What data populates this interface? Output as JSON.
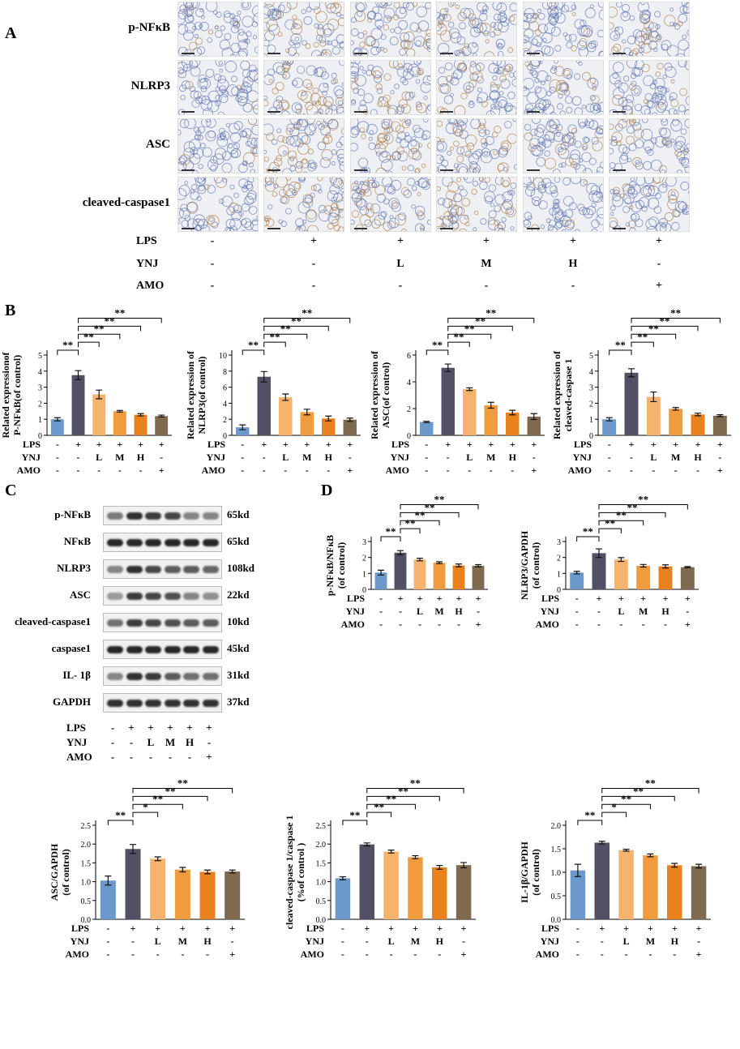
{
  "panels": {
    "A": "A",
    "B": "B",
    "C": "C",
    "D": "D"
  },
  "ihc": {
    "rows": [
      "p-NFκB",
      "NLRP3",
      "ASC",
      "cleaved-caspase1"
    ],
    "conditions": [
      {
        "label": "LPS",
        "values": [
          "-",
          "+",
          "+",
          "+",
          "+",
          "+"
        ]
      },
      {
        "label": "YNJ",
        "values": [
          "-",
          "-",
          "L",
          "M",
          "H",
          "-"
        ]
      },
      {
        "label": "AMO",
        "values": [
          "-",
          "-",
          "-",
          "-",
          "-",
          "+"
        ]
      }
    ]
  },
  "conditions_short": [
    {
      "label": "LPS",
      "values": [
        "-",
        "+",
        "+",
        "+",
        "+",
        "+"
      ]
    },
    {
      "label": "YNJ",
      "values": [
        "-",
        "-",
        "L",
        "M",
        "H",
        "-"
      ]
    },
    {
      "label": "AMO",
      "values": [
        "-",
        "-",
        "-",
        "-",
        "-",
        "+"
      ]
    }
  ],
  "western_blot": {
    "rows": [
      {
        "name": "p-NFκB",
        "kd": "65kd",
        "intensity": [
          0.55,
          0.9,
          0.85,
          0.8,
          0.5,
          0.5
        ]
      },
      {
        "name": "NFκB",
        "kd": "65kd",
        "intensity": [
          0.95,
          0.95,
          0.95,
          0.95,
          0.95,
          0.95
        ]
      },
      {
        "name": "NLRP3",
        "kd": "108kd",
        "intensity": [
          0.5,
          0.9,
          0.8,
          0.7,
          0.7,
          0.65
        ]
      },
      {
        "name": "ASC",
        "kd": "22kd",
        "intensity": [
          0.4,
          0.85,
          0.8,
          0.75,
          0.5,
          0.45
        ]
      },
      {
        "name": "cleaved-caspase1",
        "kd": "10kd",
        "intensity": [
          0.6,
          0.85,
          0.8,
          0.75,
          0.7,
          0.7
        ]
      },
      {
        "name": "caspase1",
        "kd": "45kd",
        "intensity": [
          0.95,
          0.95,
          0.95,
          0.95,
          0.95,
          0.95
        ]
      },
      {
        "name": "IL- 1β",
        "kd": "31kd",
        "intensity": [
          0.5,
          0.9,
          0.85,
          0.7,
          0.6,
          0.6
        ]
      },
      {
        "name": "GAPDH",
        "kd": "37kd",
        "intensity": [
          0.9,
          0.9,
          0.9,
          0.9,
          0.9,
          0.9
        ]
      }
    ]
  },
  "colors": [
    "#6b99cc",
    "#515064",
    "#f6b36e",
    "#f19b3f",
    "#e9821c",
    "#7f6a4f"
  ],
  "chart_data": [
    {
      "type": "bar",
      "panel": "B",
      "ylabel": [
        "Related expressionof",
        "P-NFκB(of control)"
      ],
      "ylim": [
        0,
        5
      ],
      "yticks": [
        0,
        1,
        2,
        3,
        4,
        5
      ],
      "values": [
        1.0,
        3.75,
        2.55,
        1.5,
        1.28,
        1.2
      ],
      "errors": [
        0.1,
        0.28,
        0.27,
        0.05,
        0.07,
        0.06
      ],
      "significance": [
        {
          "from": 1,
          "to": 0,
          "label": "**"
        },
        {
          "from": 1,
          "to": 2,
          "label": "**"
        },
        {
          "from": 1,
          "to": 3,
          "label": "**"
        },
        {
          "from": 1,
          "to": 4,
          "label": "**"
        },
        {
          "from": 1,
          "to": 5,
          "label": "**"
        }
      ]
    },
    {
      "type": "bar",
      "panel": "B",
      "ylabel": [
        "Related expression of",
        "NLRP3(of control)"
      ],
      "ylim": [
        0,
        10
      ],
      "yticks": [
        0,
        2,
        4,
        6,
        8,
        10
      ],
      "values": [
        1.0,
        7.3,
        4.75,
        2.9,
        2.1,
        1.95
      ],
      "errors": [
        0.3,
        0.65,
        0.4,
        0.35,
        0.3,
        0.2
      ],
      "significance": [
        {
          "from": 1,
          "to": 0,
          "label": "**"
        },
        {
          "from": 1,
          "to": 2,
          "label": "**"
        },
        {
          "from": 1,
          "to": 3,
          "label": "**"
        },
        {
          "from": 1,
          "to": 4,
          "label": "**"
        },
        {
          "from": 1,
          "to": 5,
          "label": "**"
        }
      ]
    },
    {
      "type": "bar",
      "panel": "B",
      "ylabel": [
        "Related expression of",
        "ASC(of control)"
      ],
      "ylim": [
        0,
        6
      ],
      "yticks": [
        0,
        2,
        4,
        6
      ],
      "values": [
        1.0,
        5.05,
        3.45,
        2.25,
        1.7,
        1.4
      ],
      "errors": [
        0.05,
        0.28,
        0.1,
        0.22,
        0.17,
        0.22
      ],
      "significance": [
        {
          "from": 1,
          "to": 0,
          "label": "**"
        },
        {
          "from": 1,
          "to": 2,
          "label": "**"
        },
        {
          "from": 1,
          "to": 3,
          "label": "**"
        },
        {
          "from": 1,
          "to": 4,
          "label": "**"
        },
        {
          "from": 1,
          "to": 5,
          "label": "**"
        }
      ]
    },
    {
      "type": "bar",
      "panel": "B",
      "ylabel": [
        "Related expression of",
        "cleaved-caspase 1"
      ],
      "ylim": [
        0,
        5
      ],
      "yticks": [
        0,
        1,
        2,
        3,
        4,
        5
      ],
      "values": [
        1.0,
        3.9,
        2.4,
        1.65,
        1.3,
        1.22
      ],
      "errors": [
        0.1,
        0.25,
        0.3,
        0.08,
        0.08,
        0.06
      ],
      "significance": [
        {
          "from": 1,
          "to": 0,
          "label": "**"
        },
        {
          "from": 1,
          "to": 2,
          "label": "**"
        },
        {
          "from": 1,
          "to": 3,
          "label": "**"
        },
        {
          "from": 1,
          "to": 4,
          "label": "**"
        },
        {
          "from": 1,
          "to": 5,
          "label": "**"
        }
      ]
    },
    {
      "type": "bar",
      "panel": "D",
      "ylabel": [
        "p-NFκB/NFκB",
        "(of control)"
      ],
      "ylim": [
        0,
        3
      ],
      "yticks": [
        0,
        1,
        2,
        3
      ],
      "values": [
        1.05,
        2.3,
        1.87,
        1.67,
        1.5,
        1.48
      ],
      "errors": [
        0.15,
        0.13,
        0.08,
        0.06,
        0.09,
        0.07
      ],
      "significance": [
        {
          "from": 1,
          "to": 0,
          "label": "**"
        },
        {
          "from": 1,
          "to": 2,
          "label": "**"
        },
        {
          "from": 1,
          "to": 3,
          "label": "**"
        },
        {
          "from": 1,
          "to": 4,
          "label": "**"
        },
        {
          "from": 1,
          "to": 5,
          "label": "**"
        }
      ]
    },
    {
      "type": "bar",
      "panel": "D",
      "ylabel": [
        "NLRP3/GAPDH",
        "(of control)"
      ],
      "ylim": [
        0,
        3
      ],
      "yticks": [
        0,
        1,
        2,
        3
      ],
      "values": [
        1.05,
        2.27,
        1.87,
        1.48,
        1.44,
        1.39
      ],
      "errors": [
        0.08,
        0.27,
        0.12,
        0.08,
        0.1,
        0.04
      ],
      "significance": [
        {
          "from": 1,
          "to": 0,
          "label": "**"
        },
        {
          "from": 1,
          "to": 2,
          "label": "**"
        },
        {
          "from": 1,
          "to": 3,
          "label": "**"
        },
        {
          "from": 1,
          "to": 4,
          "label": "**"
        },
        {
          "from": 1,
          "to": 5,
          "label": "**"
        }
      ]
    },
    {
      "type": "bar",
      "panel": "D",
      "ylabel": [
        "ASC/GAPDH",
        "(of control)"
      ],
      "ylim": [
        0,
        2.5
      ],
      "yticks": [
        0.0,
        0.5,
        1.0,
        1.5,
        2.0,
        2.5
      ],
      "values": [
        1.03,
        1.87,
        1.61,
        1.32,
        1.26,
        1.27
      ],
      "errors": [
        0.12,
        0.12,
        0.05,
        0.06,
        0.05,
        0.04
      ],
      "significance": [
        {
          "from": 1,
          "to": 0,
          "label": "**"
        },
        {
          "from": 1,
          "to": 2,
          "label": "*"
        },
        {
          "from": 1,
          "to": 3,
          "label": "**"
        },
        {
          "from": 1,
          "to": 4,
          "label": "**"
        },
        {
          "from": 1,
          "to": 5,
          "label": "**"
        }
      ]
    },
    {
      "type": "bar",
      "panel": "D",
      "ylabel": [
        "cleaved-caspase 1/caspase 1",
        "(%of control )"
      ],
      "ylim": [
        0,
        2.5
      ],
      "yticks": [
        0.0,
        0.5,
        1.0,
        1.5,
        2.0,
        2.5
      ],
      "values": [
        1.09,
        1.99,
        1.8,
        1.65,
        1.38,
        1.44
      ],
      "errors": [
        0.04,
        0.04,
        0.04,
        0.04,
        0.05,
        0.07
      ],
      "significance": [
        {
          "from": 1,
          "to": 0,
          "label": "**"
        },
        {
          "from": 1,
          "to": 2,
          "label": "**"
        },
        {
          "from": 1,
          "to": 3,
          "label": "**"
        },
        {
          "from": 1,
          "to": 4,
          "label": "**"
        },
        {
          "from": 1,
          "to": 5,
          "label": "**"
        }
      ]
    },
    {
      "type": "bar",
      "panel": "D",
      "ylabel": [
        "IL-1β/GAPDH",
        "(of control)"
      ],
      "ylim": [
        0,
        2.0
      ],
      "yticks": [
        0.0,
        0.5,
        1.0,
        1.5,
        2.0
      ],
      "values": [
        1.04,
        1.63,
        1.47,
        1.36,
        1.15,
        1.13
      ],
      "errors": [
        0.13,
        0.03,
        0.02,
        0.03,
        0.04,
        0.04
      ],
      "significance": [
        {
          "from": 1,
          "to": 0,
          "label": "**"
        },
        {
          "from": 1,
          "to": 2,
          "label": "*"
        },
        {
          "from": 1,
          "to": 3,
          "label": "**"
        },
        {
          "from": 1,
          "to": 4,
          "label": "**"
        },
        {
          "from": 1,
          "to": 5,
          "label": "**"
        }
      ]
    }
  ]
}
